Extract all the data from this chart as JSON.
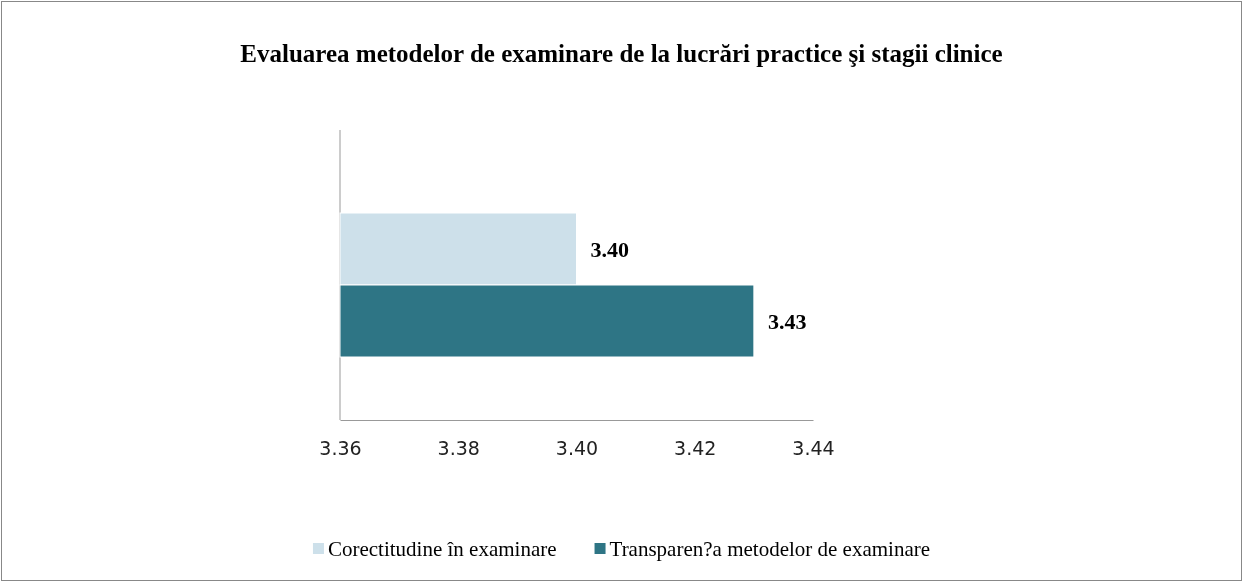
{
  "chart_data": {
    "type": "bar",
    "orientation": "horizontal",
    "title": "Evaluarea metodelor de examinare de la lucrări practice şi stagii clinice",
    "categories": [
      null
    ],
    "series": [
      {
        "name": "Corectitudine în examinare",
        "color": "#cde0ea",
        "values": [
          3.4
        ],
        "value_labels": [
          "3.40"
        ]
      },
      {
        "name": "Transparen?a metodelor de examinare",
        "color": "#2e7585",
        "values": [
          3.43
        ],
        "value_labels": [
          "3.43"
        ]
      }
    ],
    "xlim": [
      3.36,
      3.44
    ],
    "xticks": [
      {
        "value": 3.36,
        "label": "3.36"
      },
      {
        "value": 3.38,
        "label": "3.38"
      },
      {
        "value": 3.4,
        "label": "3.40"
      },
      {
        "value": 3.42,
        "label": "3.42"
      },
      {
        "value": 3.44,
        "label": "3.44"
      }
    ],
    "grid": false,
    "legend": "bottom"
  }
}
